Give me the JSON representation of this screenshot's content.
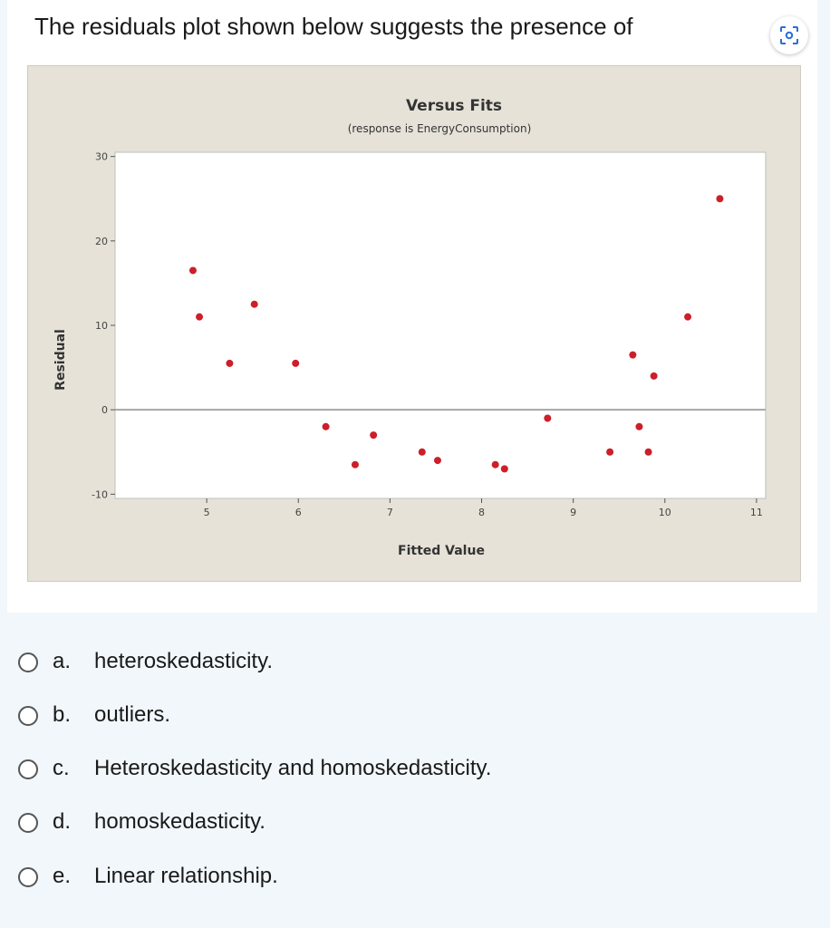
{
  "question": "The residuals plot shown below suggests the presence of",
  "icons": {
    "scan": "scan-icon"
  },
  "chart_data": {
    "type": "scatter",
    "title": "Versus Fits",
    "subtitle": "(response is EnergyConsumption)",
    "xlabel": "Fitted Value",
    "ylabel": "Residual",
    "xlim": [
      4.0,
      11.1
    ],
    "ylim": [
      -10.5,
      30.5
    ],
    "xticks": [
      "5",
      "6",
      "7",
      "8",
      "9",
      "10",
      "11"
    ],
    "yticks": [
      "-10",
      "0",
      "10",
      "20",
      "30"
    ],
    "reference_line": 0,
    "point_color": "#cc1f2a",
    "points": [
      {
        "x": 4.85,
        "y": 16.5
      },
      {
        "x": 4.92,
        "y": 11.0
      },
      {
        "x": 5.25,
        "y": 5.5
      },
      {
        "x": 5.52,
        "y": 12.5
      },
      {
        "x": 5.97,
        "y": 5.5
      },
      {
        "x": 6.3,
        "y": -2.0
      },
      {
        "x": 6.62,
        "y": -6.5
      },
      {
        "x": 6.82,
        "y": -3.0
      },
      {
        "x": 7.35,
        "y": -5.0
      },
      {
        "x": 7.52,
        "y": -6.0
      },
      {
        "x": 8.15,
        "y": -6.5
      },
      {
        "x": 8.25,
        "y": -7.0
      },
      {
        "x": 8.72,
        "y": -1.0
      },
      {
        "x": 9.4,
        "y": -5.0
      },
      {
        "x": 9.65,
        "y": 6.5
      },
      {
        "x": 9.72,
        "y": -2.0
      },
      {
        "x": 9.82,
        "y": -5.0
      },
      {
        "x": 9.88,
        "y": 4.0
      },
      {
        "x": 10.25,
        "y": 11.0
      },
      {
        "x": 10.6,
        "y": 25.0
      }
    ]
  },
  "options": [
    {
      "letter": "a.",
      "text": "heteroskedasticity."
    },
    {
      "letter": "b.",
      "text": "outliers."
    },
    {
      "letter": "c.",
      "text": "Heteroskedasticity and homoskedasticity."
    },
    {
      "letter": "d.",
      "text": "homoskedasticity."
    },
    {
      "letter": "e.",
      "text": "Linear relationship."
    }
  ]
}
